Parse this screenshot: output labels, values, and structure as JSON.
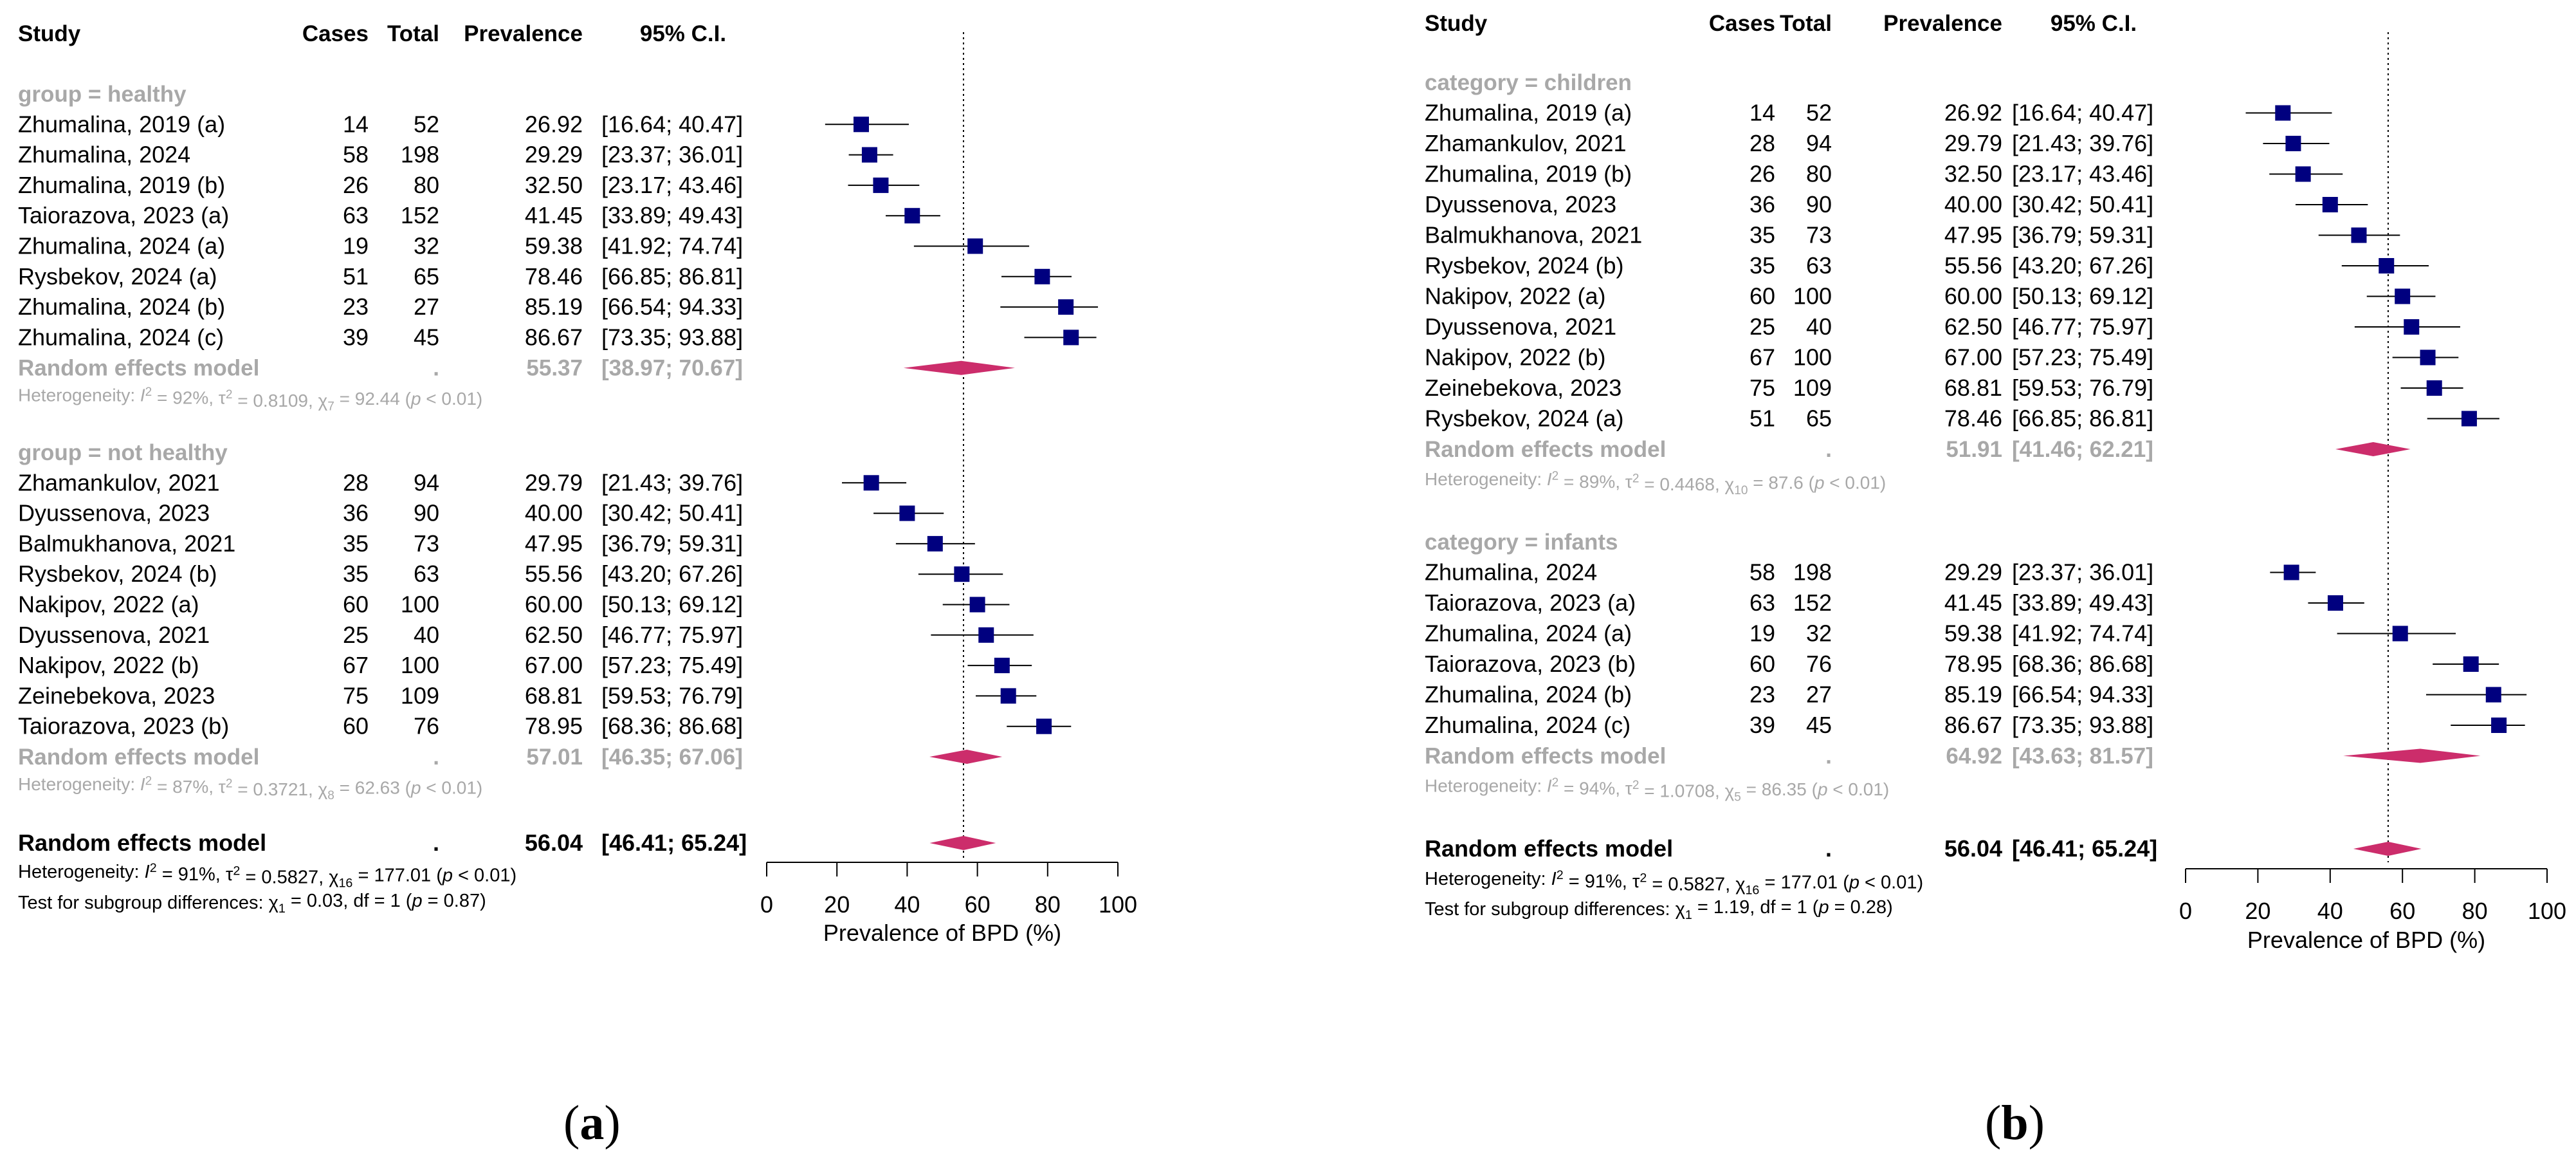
{
  "chart_data": [
    {
      "type": "forest",
      "panel_label": "a",
      "columns": [
        "Study",
        "Cases",
        "Total",
        "Prevalence",
        "95% C.I."
      ],
      "xlabel": "Prevalence of BPD (%)",
      "xlim": [
        0,
        100
      ],
      "xticks": [
        "0",
        "20",
        "40",
        "60",
        "80",
        "100"
      ],
      "reference_line": 56.04,
      "groups": [
        {
          "label": "group = healthy",
          "studies": [
            {
              "study": "Zhumalina, 2019 (a)",
              "cases": "14",
              "total": "52",
              "prev": "26.92",
              "ci": "[16.64; 40.47]",
              "est": 26.92,
              "lo": 16.64,
              "hi": 40.47
            },
            {
              "study": "Zhumalina, 2024",
              "cases": "58",
              "total": "198",
              "prev": "29.29",
              "ci": "[23.37; 36.01]",
              "est": 29.29,
              "lo": 23.37,
              "hi": 36.01
            },
            {
              "study": "Zhumalina, 2019 (b)",
              "cases": "26",
              "total": "80",
              "prev": "32.50",
              "ci": "[23.17; 43.46]",
              "est": 32.5,
              "lo": 23.17,
              "hi": 43.46
            },
            {
              "study": "Taiorazova, 2023 (a)",
              "cases": "63",
              "total": "152",
              "prev": "41.45",
              "ci": "[33.89; 49.43]",
              "est": 41.45,
              "lo": 33.89,
              "hi": 49.43
            },
            {
              "study": "Zhumalina, 2024 (a)",
              "cases": "19",
              "total": "32",
              "prev": "59.38",
              "ci": "[41.92; 74.74]",
              "est": 59.38,
              "lo": 41.92,
              "hi": 74.74
            },
            {
              "study": "Rysbekov, 2024 (a)",
              "cases": "51",
              "total": "65",
              "prev": "78.46",
              "ci": "[66.85; 86.81]",
              "est": 78.46,
              "lo": 66.85,
              "hi": 86.81
            },
            {
              "study": "Zhumalina, 2024 (b)",
              "cases": "23",
              "total": "27",
              "prev": "85.19",
              "ci": "[66.54; 94.33]",
              "est": 85.19,
              "lo": 66.54,
              "hi": 94.33
            },
            {
              "study": "Zhumalina, 2024 (c)",
              "cases": "39",
              "total": "45",
              "prev": "86.67",
              "ci": "[73.35; 93.88]",
              "est": 86.67,
              "lo": 73.35,
              "hi": 93.88
            }
          ],
          "model": {
            "label": "Random effects model",
            "dot": ".",
            "prev": "55.37",
            "ci": "[38.97; 70.67]",
            "est": 55.37,
            "lo": 38.97,
            "hi": 70.67
          },
          "heterogeneity": {
            "pre": "Heterogeneity: ",
            "i2": "I",
            "i2_text": " = 92%, ",
            "tau": "τ",
            "tau_text": " = 0.8109, ",
            "chi": "χ",
            "df": "7",
            "chi_text": " = 92.44 (",
            "p": "p",
            "p_text": " < 0.01)"
          }
        },
        {
          "label": "group = not healthy",
          "studies": [
            {
              "study": "Zhamankulov, 2021",
              "cases": "28",
              "total": "94",
              "prev": "29.79",
              "ci": "[21.43; 39.76]",
              "est": 29.79,
              "lo": 21.43,
              "hi": 39.76
            },
            {
              "study": "Dyussenova, 2023",
              "cases": "36",
              "total": "90",
              "prev": "40.00",
              "ci": "[30.42; 50.41]",
              "est": 40.0,
              "lo": 30.42,
              "hi": 50.41
            },
            {
              "study": "Balmukhanova, 2021",
              "cases": "35",
              "total": "73",
              "prev": "47.95",
              "ci": "[36.79; 59.31]",
              "est": 47.95,
              "lo": 36.79,
              "hi": 59.31
            },
            {
              "study": "Rysbekov, 2024 (b)",
              "cases": "35",
              "total": "63",
              "prev": "55.56",
              "ci": "[43.20; 67.26]",
              "est": 55.56,
              "lo": 43.2,
              "hi": 67.26
            },
            {
              "study": "Nakipov, 2022 (a)",
              "cases": "60",
              "total": "100",
              "prev": "60.00",
              "ci": "[50.13; 69.12]",
              "est": 60.0,
              "lo": 50.13,
              "hi": 69.12
            },
            {
              "study": "Dyussenova, 2021",
              "cases": "25",
              "total": "40",
              "prev": "62.50",
              "ci": "[46.77; 75.97]",
              "est": 62.5,
              "lo": 46.77,
              "hi": 75.97
            },
            {
              "study": "Nakipov, 2022 (b)",
              "cases": "67",
              "total": "100",
              "prev": "67.00",
              "ci": "[57.23; 75.49]",
              "est": 67.0,
              "lo": 57.23,
              "hi": 75.49
            },
            {
              "study": "Zeinebekova, 2023",
              "cases": "75",
              "total": "109",
              "prev": "68.81",
              "ci": "[59.53; 76.79]",
              "est": 68.81,
              "lo": 59.53,
              "hi": 76.79
            },
            {
              "study": "Taiorazova, 2023 (b)",
              "cases": "60",
              "total": "76",
              "prev": "78.95",
              "ci": "[68.36; 86.68]",
              "est": 78.95,
              "lo": 68.36,
              "hi": 86.68
            }
          ],
          "model": {
            "label": "Random effects model",
            "dot": ".",
            "prev": "57.01",
            "ci": "[46.35; 67.06]",
            "est": 57.01,
            "lo": 46.35,
            "hi": 67.06
          },
          "heterogeneity": {
            "pre": "Heterogeneity: ",
            "i2": "I",
            "i2_text": " = 87%, ",
            "tau": "τ",
            "tau_text": " = 0.3721, ",
            "chi": "χ",
            "df": "8",
            "chi_text": " = 62.63 (",
            "p": "p",
            "p_text": " < 0.01)"
          }
        }
      ],
      "overall": {
        "label": "Random effects model",
        "dot": ".",
        "prev": "56.04",
        "ci": "[46.41; 65.24]",
        "est": 56.04,
        "lo": 46.41,
        "hi": 65.24
      },
      "overall_heterogeneity": {
        "pre": "Heterogeneity: ",
        "i2": "I",
        "i2_text": " = 91%, ",
        "tau": "τ",
        "tau_text": " = 0.5827, ",
        "chi": "χ",
        "df": "16",
        "chi_text": " = 177.01 (",
        "p": "p",
        "p_text": " < 0.01)"
      },
      "subgroup_test": {
        "pre": "Test for subgroup differences: ",
        "chi": "χ",
        "df": "1",
        "chi_text": " = 0.03, df = 1 (",
        "p": "p",
        "p_text": " = 0.87)"
      }
    },
    {
      "type": "forest",
      "panel_label": "b",
      "columns": [
        "Study",
        "Cases",
        "Total",
        "Prevalence",
        "95% C.I."
      ],
      "xlabel": "Prevalence of BPD (%)",
      "xlim": [
        0,
        100
      ],
      "xticks": [
        "0",
        "20",
        "40",
        "60",
        "80",
        "100"
      ],
      "reference_line": 56.04,
      "groups": [
        {
          "label": "category = children",
          "studies": [
            {
              "study": "Zhumalina, 2019 (a)",
              "cases": "14",
              "total": "52",
              "prev": "26.92",
              "ci": "[16.64; 40.47]",
              "est": 26.92,
              "lo": 16.64,
              "hi": 40.47
            },
            {
              "study": "Zhamankulov, 2021",
              "cases": "28",
              "total": "94",
              "prev": "29.79",
              "ci": "[21.43; 39.76]",
              "est": 29.79,
              "lo": 21.43,
              "hi": 39.76
            },
            {
              "study": "Zhumalina, 2019 (b)",
              "cases": "26",
              "total": "80",
              "prev": "32.50",
              "ci": "[23.17; 43.46]",
              "est": 32.5,
              "lo": 23.17,
              "hi": 43.46
            },
            {
              "study": "Dyussenova, 2023",
              "cases": "36",
              "total": "90",
              "prev": "40.00",
              "ci": "[30.42; 50.41]",
              "est": 40.0,
              "lo": 30.42,
              "hi": 50.41
            },
            {
              "study": "Balmukhanova, 2021",
              "cases": "35",
              "total": "73",
              "prev": "47.95",
              "ci": "[36.79; 59.31]",
              "est": 47.95,
              "lo": 36.79,
              "hi": 59.31
            },
            {
              "study": "Rysbekov, 2024 (b)",
              "cases": "35",
              "total": "63",
              "prev": "55.56",
              "ci": "[43.20; 67.26]",
              "est": 55.56,
              "lo": 43.2,
              "hi": 67.26
            },
            {
              "study": "Nakipov, 2022 (a)",
              "cases": "60",
              "total": "100",
              "prev": "60.00",
              "ci": "[50.13; 69.12]",
              "est": 60.0,
              "lo": 50.13,
              "hi": 69.12
            },
            {
              "study": "Dyussenova, 2021",
              "cases": "25",
              "total": "40",
              "prev": "62.50",
              "ci": "[46.77; 75.97]",
              "est": 62.5,
              "lo": 46.77,
              "hi": 75.97
            },
            {
              "study": "Nakipov, 2022 (b)",
              "cases": "67",
              "total": "100",
              "prev": "67.00",
              "ci": "[57.23; 75.49]",
              "est": 67.0,
              "lo": 57.23,
              "hi": 75.49
            },
            {
              "study": "Zeinebekova, 2023",
              "cases": "75",
              "total": "109",
              "prev": "68.81",
              "ci": "[59.53; 76.79]",
              "est": 68.81,
              "lo": 59.53,
              "hi": 76.79
            },
            {
              "study": "Rysbekov, 2024 (a)",
              "cases": "51",
              "total": "65",
              "prev": "78.46",
              "ci": "[66.85; 86.81]",
              "est": 78.46,
              "lo": 66.85,
              "hi": 86.81
            }
          ],
          "model": {
            "label": "Random effects model",
            "dot": ".",
            "prev": "51.91",
            "ci": "[41.46; 62.21]",
            "est": 51.91,
            "lo": 41.46,
            "hi": 62.21
          },
          "heterogeneity": {
            "pre": "Heterogeneity: ",
            "i2": "I",
            "i2_text": " = 89%, ",
            "tau": "τ",
            "tau_text": " = 0.4468, ",
            "chi": "χ",
            "df": "10",
            "chi_text": " = 87.6 (",
            "p": "p",
            "p_text": " < 0.01)"
          }
        },
        {
          "label": "category = infants",
          "studies": [
            {
              "study": "Zhumalina, 2024",
              "cases": "58",
              "total": "198",
              "prev": "29.29",
              "ci": "[23.37; 36.01]",
              "est": 29.29,
              "lo": 23.37,
              "hi": 36.01
            },
            {
              "study": "Taiorazova, 2023 (a)",
              "cases": "63",
              "total": "152",
              "prev": "41.45",
              "ci": "[33.89; 49.43]",
              "est": 41.45,
              "lo": 33.89,
              "hi": 49.43
            },
            {
              "study": "Zhumalina, 2024 (a)",
              "cases": "19",
              "total": "32",
              "prev": "59.38",
              "ci": "[41.92; 74.74]",
              "est": 59.38,
              "lo": 41.92,
              "hi": 74.74
            },
            {
              "study": "Taiorazova, 2023 (b)",
              "cases": "60",
              "total": "76",
              "prev": "78.95",
              "ci": "[68.36; 86.68]",
              "est": 78.95,
              "lo": 68.36,
              "hi": 86.68
            },
            {
              "study": "Zhumalina, 2024 (b)",
              "cases": "23",
              "total": "27",
              "prev": "85.19",
              "ci": "[66.54; 94.33]",
              "est": 85.19,
              "lo": 66.54,
              "hi": 94.33
            },
            {
              "study": "Zhumalina, 2024 (c)",
              "cases": "39",
              "total": "45",
              "prev": "86.67",
              "ci": "[73.35; 93.88]",
              "est": 86.67,
              "lo": 73.35,
              "hi": 93.88
            }
          ],
          "model": {
            "label": "Random effects model",
            "dot": ".",
            "prev": "64.92",
            "ci": "[43.63; 81.57]",
            "est": 64.92,
            "lo": 43.63,
            "hi": 81.57
          },
          "heterogeneity": {
            "pre": "Heterogeneity: ",
            "i2": "I",
            "i2_text": " = 94%, ",
            "tau": "τ",
            "tau_text": " = 1.0708, ",
            "chi": "χ",
            "df": "5",
            "chi_text": " = 86.35 (",
            "p": "p",
            "p_text": " < 0.01)"
          }
        }
      ],
      "overall": {
        "label": "Random effects model",
        "dot": ".",
        "prev": "56.04",
        "ci": "[46.41; 65.24]",
        "est": 56.04,
        "lo": 46.41,
        "hi": 65.24
      },
      "overall_heterogeneity": {
        "pre": "Heterogeneity: ",
        "i2": "I",
        "i2_text": " = 91%, ",
        "tau": "τ",
        "tau_text": " = 0.5827, ",
        "chi": "χ",
        "df": "16",
        "chi_text": " = 177.01 (",
        "p": "p",
        "p_text": " < 0.01)"
      },
      "subgroup_test": {
        "pre": "Test for subgroup differences: ",
        "chi": "χ",
        "df": "1",
        "chi_text": " = 1.19, df = 1 (",
        "p": "p",
        "p_text": " = 0.28)"
      }
    }
  ],
  "colors": {
    "square": "#00007f",
    "diamond": "#cc2d6b",
    "grey_text": "#a8a8a8",
    "text": "#000000"
  }
}
